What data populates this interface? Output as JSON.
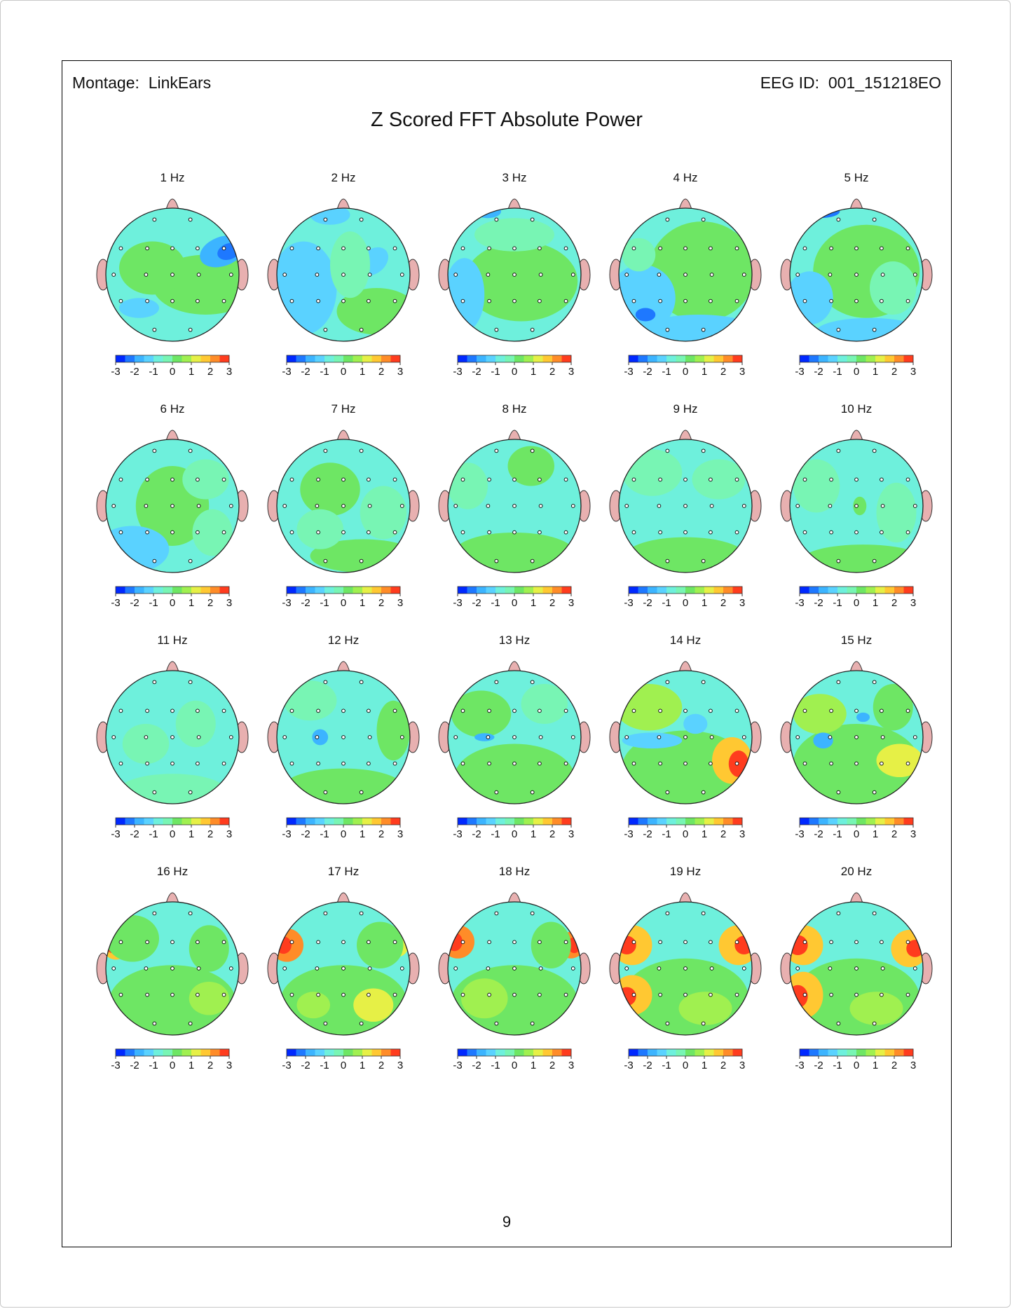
{
  "header": {
    "montage_label": "Montage:",
    "montage_value": "LinkEars",
    "eeg_id_label": "EEG ID:",
    "eeg_id_value": "001_151218EO"
  },
  "title": "Z Scored FFT Absolute Power",
  "page_number": "9",
  "scale": {
    "ticks": [
      "-3",
      "-2",
      "-1",
      "0",
      "1",
      "2",
      "3"
    ],
    "min": -3,
    "max": 3,
    "colors": [
      "#0028ff",
      "#1e78ff",
      "#3cb4ff",
      "#5ad2ff",
      "#6ef0dc",
      "#78f5b4",
      "#6ee664",
      "#a0f050",
      "#e6f046",
      "#ffc832",
      "#ff8c28",
      "#ff3c1e"
    ]
  },
  "maps": [
    {
      "label": "1 Hz"
    },
    {
      "label": "2 Hz"
    },
    {
      "label": "3 Hz"
    },
    {
      "label": "4 Hz"
    },
    {
      "label": "5 Hz"
    },
    {
      "label": "6 Hz"
    },
    {
      "label": "7 Hz"
    },
    {
      "label": "8 Hz"
    },
    {
      "label": "9 Hz"
    },
    {
      "label": "10 Hz"
    },
    {
      "label": "11 Hz"
    },
    {
      "label": "12 Hz"
    },
    {
      "label": "13 Hz"
    },
    {
      "label": "14 Hz"
    },
    {
      "label": "15 Hz"
    },
    {
      "label": "16 Hz"
    },
    {
      "label": "17 Hz"
    },
    {
      "label": "18 Hz"
    },
    {
      "label": "19 Hz"
    },
    {
      "label": "20 Hz"
    }
  ]
}
